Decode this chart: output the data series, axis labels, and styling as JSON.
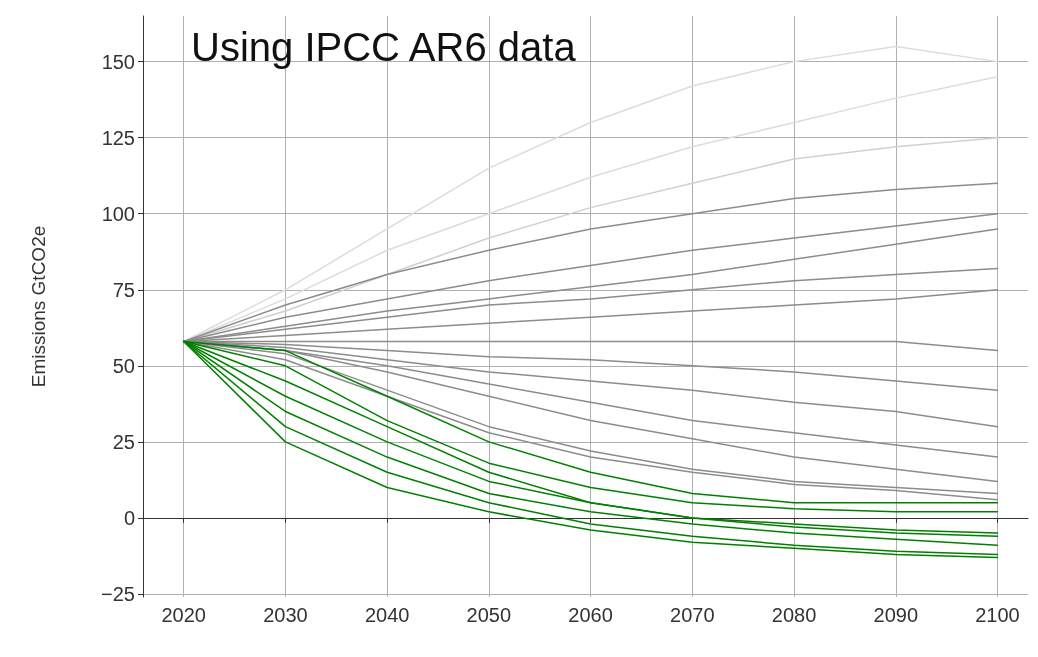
{
  "chart_data": {
    "type": "line",
    "title": "Using IPCC AR6 data",
    "ylabel": "Emissions GtCO2e",
    "x": [
      2020,
      2030,
      2040,
      2050,
      2060,
      2070,
      2080,
      2090,
      2100
    ],
    "xlim": [
      2016,
      2103
    ],
    "ylim": [
      -26,
      165
    ],
    "xticks": [
      2020,
      2030,
      2040,
      2050,
      2060,
      2070,
      2080,
      2090,
      2100
    ],
    "yticks": [
      -25,
      0,
      25,
      50,
      75,
      100,
      125,
      150
    ],
    "grid": true,
    "marker": "none",
    "line_style": "solid",
    "series": [
      {
        "color": "#dcdcdc",
        "values": [
          58,
          75,
          95,
          115,
          130,
          142,
          150,
          155,
          150
        ]
      },
      {
        "color": "#dcdcdc",
        "values": [
          58,
          72,
          88,
          100,
          112,
          122,
          130,
          138,
          145
        ]
      },
      {
        "color": "#d0d0d0",
        "values": [
          58,
          68,
          80,
          92,
          102,
          110,
          118,
          122,
          125
        ]
      },
      {
        "color": "#8c8c8c",
        "values": [
          58,
          70,
          80,
          88,
          95,
          100,
          105,
          108,
          110
        ]
      },
      {
        "color": "#8c8c8c",
        "values": [
          58,
          66,
          72,
          78,
          83,
          88,
          92,
          96,
          100
        ]
      },
      {
        "color": "#8c8c8c",
        "values": [
          58,
          63,
          68,
          72,
          76,
          80,
          85,
          90,
          95
        ]
      },
      {
        "color": "#8c8c8c",
        "values": [
          58,
          62,
          66,
          70,
          72,
          75,
          78,
          80,
          82
        ]
      },
      {
        "color": "#8c8c8c",
        "values": [
          58,
          60,
          62,
          64,
          66,
          68,
          70,
          72,
          75
        ]
      },
      {
        "color": "#8c8c8c",
        "values": [
          58,
          58,
          58,
          58,
          58,
          58,
          58,
          58,
          55
        ]
      },
      {
        "color": "#8c8c8c",
        "values": [
          58,
          57,
          55,
          53,
          52,
          50,
          48,
          45,
          42
        ]
      },
      {
        "color": "#8c8c8c",
        "values": [
          58,
          56,
          52,
          48,
          45,
          42,
          38,
          35,
          30
        ]
      },
      {
        "color": "#8c8c8c",
        "values": [
          58,
          55,
          50,
          44,
          38,
          32,
          28,
          24,
          20
        ]
      },
      {
        "color": "#8c8c8c",
        "values": [
          58,
          55,
          48,
          40,
          32,
          26,
          20,
          16,
          12
        ]
      },
      {
        "color": "#8c8c8c",
        "values": [
          58,
          54,
          42,
          30,
          22,
          16,
          12,
          10,
          8
        ]
      },
      {
        "color": "#8c8c8c",
        "values": [
          58,
          52,
          40,
          28,
          20,
          15,
          11,
          9,
          6
        ]
      },
      {
        "color": "#008000",
        "values": [
          58,
          55,
          40,
          25,
          15,
          8,
          5,
          5,
          5
        ]
      },
      {
        "color": "#008000",
        "values": [
          58,
          50,
          32,
          18,
          10,
          5,
          3,
          2,
          2
        ]
      },
      {
        "color": "#008000",
        "values": [
          58,
          45,
          30,
          15,
          5,
          0,
          -2,
          -4,
          -5
        ]
      },
      {
        "color": "#008000",
        "values": [
          58,
          40,
          25,
          12,
          5,
          0,
          -3,
          -5,
          -6
        ]
      },
      {
        "color": "#008000",
        "values": [
          58,
          35,
          20,
          8,
          2,
          -2,
          -5,
          -7,
          -9
        ]
      },
      {
        "color": "#008000",
        "values": [
          58,
          30,
          15,
          5,
          -2,
          -6,
          -9,
          -11,
          -12
        ]
      },
      {
        "color": "#008000",
        "values": [
          58,
          25,
          10,
          2,
          -4,
          -8,
          -10,
          -12,
          -13
        ]
      }
    ]
  }
}
